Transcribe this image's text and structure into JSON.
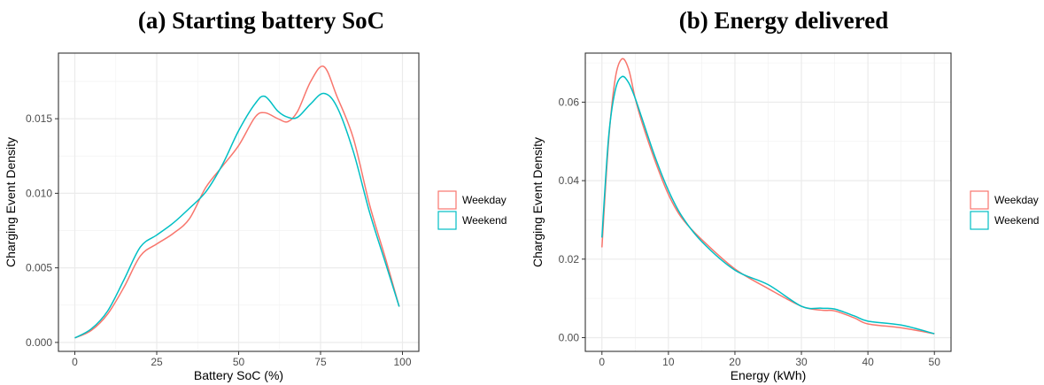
{
  "chart_data": [
    {
      "type": "line",
      "title": "(a)  Starting battery SoC",
      "xlabel": "Battery SoC (%)",
      "ylabel": "Charging Event Density",
      "xlim": [
        -5,
        105
      ],
      "ylim": [
        -0.0006,
        0.0194
      ],
      "xticks": [
        0,
        25,
        50,
        75,
        100
      ],
      "xtick_labels": [
        "0",
        "25",
        "50",
        "75",
        "100"
      ],
      "yticks": [
        0,
        0.005,
        0.01,
        0.015
      ],
      "ytick_labels": [
        "0.000",
        "0.005",
        "0.010",
        "0.015"
      ],
      "grid": true,
      "legend_position": "right",
      "series": [
        {
          "name": "Weekday",
          "color": "#F8766D",
          "x": [
            0,
            5,
            10,
            15,
            20,
            25,
            30,
            35,
            40,
            45,
            50,
            55,
            58,
            62,
            65,
            68,
            72,
            76,
            80,
            85,
            90,
            95,
            99
          ],
          "y": [
            0.0003,
            0.0008,
            0.0019,
            0.0037,
            0.0058,
            0.0066,
            0.0073,
            0.0083,
            0.0104,
            0.0118,
            0.0132,
            0.0151,
            0.0154,
            0.015,
            0.0148,
            0.0155,
            0.0175,
            0.0185,
            0.0165,
            0.0137,
            0.0092,
            0.0055,
            0.0024
          ]
        },
        {
          "name": "Weekend",
          "color": "#00BFC4",
          "x": [
            0,
            5,
            10,
            15,
            20,
            25,
            30,
            35,
            40,
            45,
            50,
            55,
            58,
            62,
            65,
            68,
            72,
            76,
            80,
            85,
            90,
            95,
            99
          ],
          "y": [
            0.0003,
            0.0009,
            0.0021,
            0.0042,
            0.0064,
            0.0072,
            0.008,
            0.009,
            0.0101,
            0.0119,
            0.0142,
            0.016,
            0.0165,
            0.0155,
            0.0151,
            0.0151,
            0.016,
            0.0167,
            0.0158,
            0.0128,
            0.0087,
            0.0052,
            0.0024
          ]
        }
      ]
    },
    {
      "type": "line",
      "title": "(b)  Energy delivered",
      "xlabel": "Energy (kWh)",
      "ylabel": "Charging Event Density",
      "xlim": [
        -2.5,
        52.5
      ],
      "ylim": [
        -0.0035,
        0.0725
      ],
      "xticks": [
        0,
        10,
        20,
        30,
        40,
        50
      ],
      "xtick_labels": [
        "0",
        "10",
        "20",
        "30",
        "40",
        "50"
      ],
      "yticks": [
        0,
        0.02,
        0.04,
        0.06
      ],
      "ytick_labels": [
        "0.00",
        "0.02",
        "0.04",
        "0.06"
      ],
      "grid": true,
      "legend_position": "right",
      "series": [
        {
          "name": "Weekday",
          "color": "#F8766D",
          "x": [
            0,
            1,
            2,
            3,
            4,
            5,
            6,
            8,
            10,
            12,
            15,
            20,
            25,
            30,
            33,
            35,
            38,
            40,
            45,
            50
          ],
          "y": [
            0.023,
            0.05,
            0.066,
            0.071,
            0.0685,
            0.061,
            0.055,
            0.045,
            0.0365,
            0.0305,
            0.025,
            0.0175,
            0.0125,
            0.008,
            0.007,
            0.0068,
            0.005,
            0.0035,
            0.0025,
            0.001
          ]
        },
        {
          "name": "Weekend",
          "color": "#00BFC4",
          "x": [
            0,
            1,
            2,
            3,
            4,
            5,
            6,
            8,
            10,
            12,
            15,
            20,
            25,
            30,
            33,
            35,
            38,
            40,
            45,
            50
          ],
          "y": [
            0.0255,
            0.051,
            0.063,
            0.0665,
            0.065,
            0.061,
            0.056,
            0.046,
            0.0375,
            0.031,
            0.0245,
            0.0172,
            0.0135,
            0.008,
            0.0075,
            0.0073,
            0.0055,
            0.0042,
            0.0032,
            0.001
          ]
        }
      ]
    }
  ]
}
